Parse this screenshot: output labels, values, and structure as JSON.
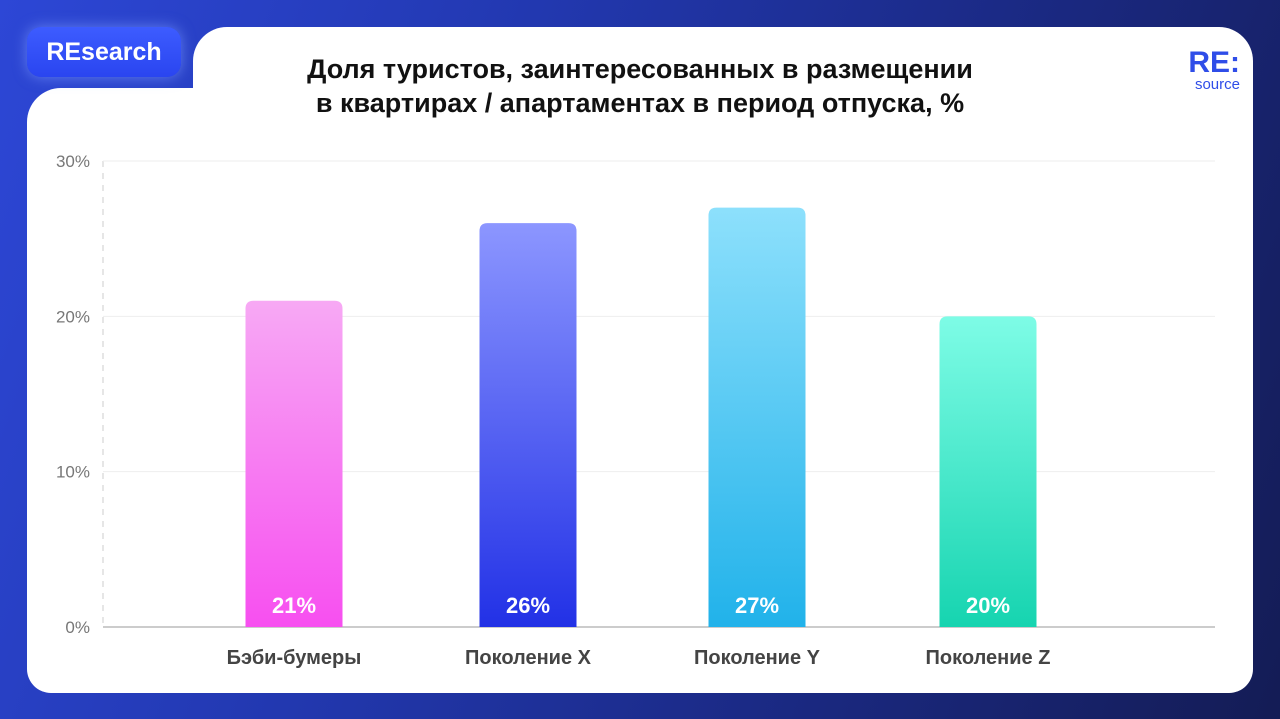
{
  "badge": "REsearch",
  "logo": {
    "main": "RE:",
    "sub": "source"
  },
  "chart_data": {
    "type": "bar",
    "title": "Доля туристов, заинтересованных в размещении в квартирах / апартаментах в период отпуска, %",
    "title_lines": [
      "Доля туристов, заинтересованных в размещении",
      "в квартирах / апартаментах в период отпуска, %"
    ],
    "categories": [
      "Бэби-бумеры",
      "Поколение X",
      "Поколение Y",
      "Поколение Z"
    ],
    "values": [
      21,
      26,
      27,
      20
    ],
    "data_labels": [
      "21%",
      "26%",
      "27%",
      "20%"
    ],
    "ylim": [
      0,
      30
    ],
    "yticks": [
      0,
      10,
      20,
      30
    ],
    "ytick_labels": [
      "0%",
      "10%",
      "20%",
      "30%"
    ],
    "grid": true,
    "xlabel": "",
    "ylabel": "",
    "colors": [
      [
        "#f7a9f4",
        "#f74ff0"
      ],
      [
        "#8c96ff",
        "#2231e6"
      ],
      [
        "#8de0fc",
        "#21b2ea"
      ],
      [
        "#7efce6",
        "#16d4b0"
      ]
    ]
  }
}
